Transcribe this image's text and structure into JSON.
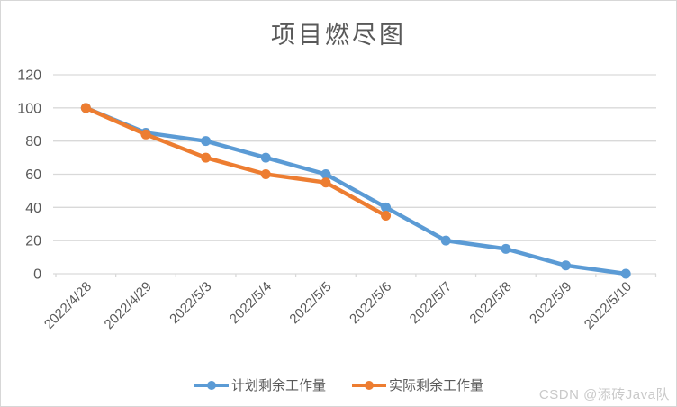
{
  "chart": {
    "title": "项目燃尽图",
    "watermark": "CSDN @添砖Java队"
  },
  "chart_data": {
    "type": "line",
    "title": "项目燃尽图",
    "xlabel": "",
    "ylabel": "",
    "categories": [
      "2022/4/28",
      "2022/4/29",
      "2022/5/3",
      "2022/5/4",
      "2022/5/5",
      "2022/5/6",
      "2022/5/7",
      "2022/5/8",
      "2022/5/9",
      "2022/5/10"
    ],
    "series": [
      {
        "name": "计划剩余工作量",
        "color": "#5B9BD5",
        "values": [
          100,
          85,
          80,
          70,
          60,
          40,
          20,
          15,
          5,
          0
        ]
      },
      {
        "name": "实际剩余工作量",
        "color": "#ED7D31",
        "values": [
          100,
          84,
          70,
          60,
          55,
          35,
          null,
          null,
          null,
          null
        ]
      }
    ],
    "ylim": [
      0,
      120
    ],
    "ytick_step": 20,
    "grid": true,
    "legend_position": "bottom",
    "axis_color": "#d9d9d9",
    "label_color": "#595959"
  }
}
